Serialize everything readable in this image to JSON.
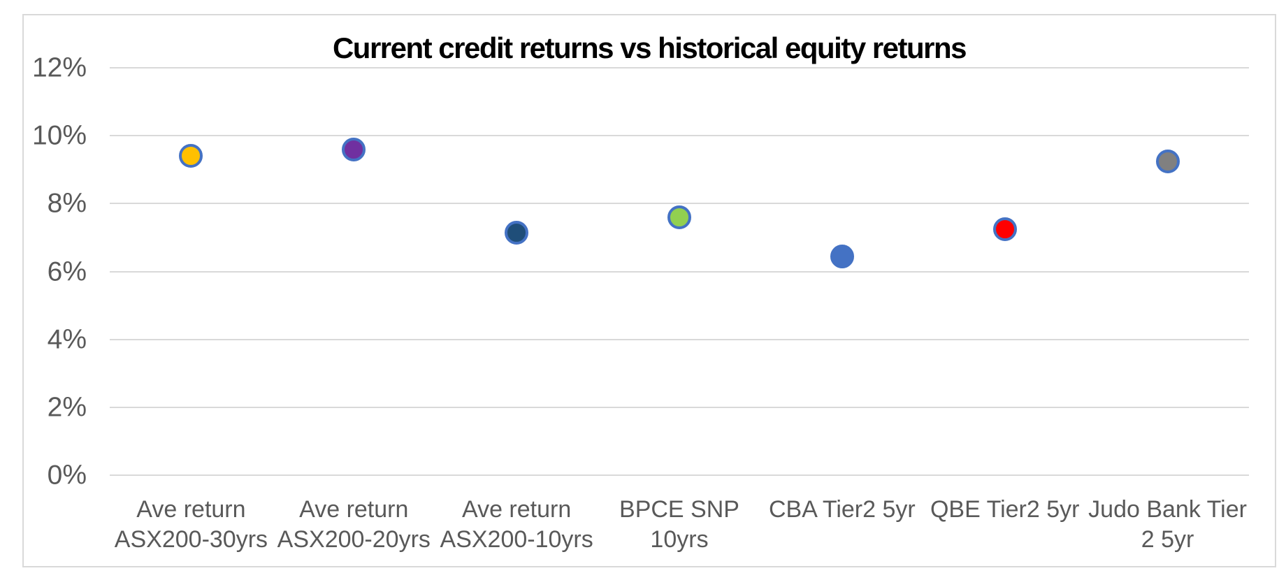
{
  "chart_data": {
    "type": "scatter",
    "title": "Current credit returns vs historical equity returns",
    "categories": [
      "Ave return ASX200-30yrs",
      "Ave return ASX200-20yrs",
      "Ave return ASX200-10yrs",
      "BPCE SNP 10yrs",
      "CBA Tier2 5yr",
      "QBE Tier2 5yr",
      "Judo Bank Tier 2 5yr"
    ],
    "category_lines": [
      [
        "Ave return",
        "ASX200-30yrs"
      ],
      [
        "Ave return",
        "ASX200-20yrs"
      ],
      [
        "Ave return",
        "ASX200-10yrs"
      ],
      [
        "BPCE SNP",
        "10yrs"
      ],
      [
        "CBA Tier2 5yr"
      ],
      [
        "QBE Tier2 5yr"
      ],
      [
        "Judo Bank Tier",
        "2 5yr"
      ]
    ],
    "values": [
      9.4,
      9.6,
      7.15,
      7.6,
      6.45,
      7.25,
      9.25
    ],
    "unit": "%",
    "xlabel": "",
    "ylabel": "",
    "ylim": [
      0,
      12
    ],
    "ytick_step": 2,
    "ytick_labels": [
      "0%",
      "2%",
      "4%",
      "6%",
      "8%",
      "10%",
      "12%"
    ],
    "grid": "horizontal",
    "legend": "none",
    "point_colors": [
      {
        "fill": "#FFC000",
        "border": "#4472C4"
      },
      {
        "fill": "#7030A0",
        "border": "#4472C4"
      },
      {
        "fill": "#1F4E79",
        "border": "#4472C4"
      },
      {
        "fill": "#92D050",
        "border": "#4472C4"
      },
      {
        "fill": "#4472C4",
        "border": "#4472C4"
      },
      {
        "fill": "#FF0000",
        "border": "#4472C4"
      },
      {
        "fill": "#808080",
        "border": "#4472C4"
      }
    ]
  },
  "colors": {
    "background": "#FFFFFF",
    "frame_border": "#D9D9D9",
    "gridline": "#D9D9D9",
    "axis_text": "#595959",
    "title_text": "#000000"
  }
}
